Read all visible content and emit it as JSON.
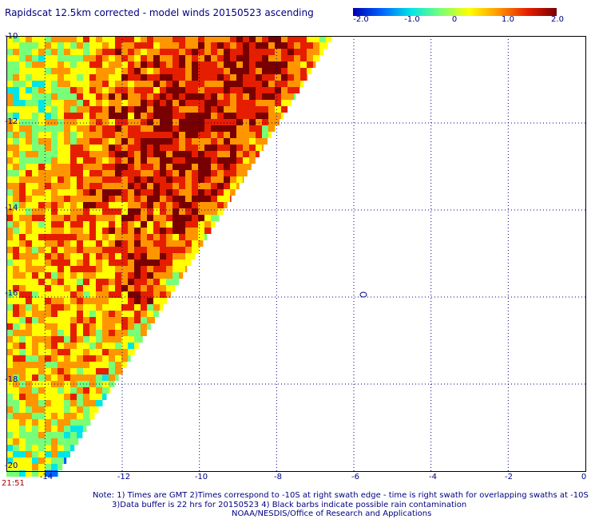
{
  "title": "Rapidscat 12.5km corrected - model winds 20150523 ascending",
  "colorbar": {
    "labels": [
      "-2.0",
      "-1.0",
      "0",
      "1.0",
      "2.0"
    ],
    "stops": [
      "#0000b4",
      "#0064ff",
      "#00e6e6",
      "#78ff78",
      "#ffff00",
      "#ff9600",
      "#e61e00",
      "#780000"
    ]
  },
  "map": {
    "lon_labels": [
      "-14",
      "-12",
      "-10",
      "-8",
      "-6",
      "-4",
      "-2",
      "0"
    ],
    "lat_labels": [
      "-10",
      "-12",
      "-14",
      "-16",
      "-18",
      "-20"
    ],
    "lon_range": [
      -15,
      0
    ],
    "lat_range": [
      -20,
      -10
    ],
    "contour_label": "0"
  },
  "timestamp": "21:51",
  "notes": {
    "line1": "Note: 1) Times are GMT 2)Times correspond to -10S at right swath edge - time is right swath for overlapping swaths at -10S",
    "line2": "3)Data buffer is 22 hrs for 20150523 4) Black barbs indicate possible rain contamination",
    "line3": "NOAA/NESDIS/Office of Research and Applications"
  }
}
